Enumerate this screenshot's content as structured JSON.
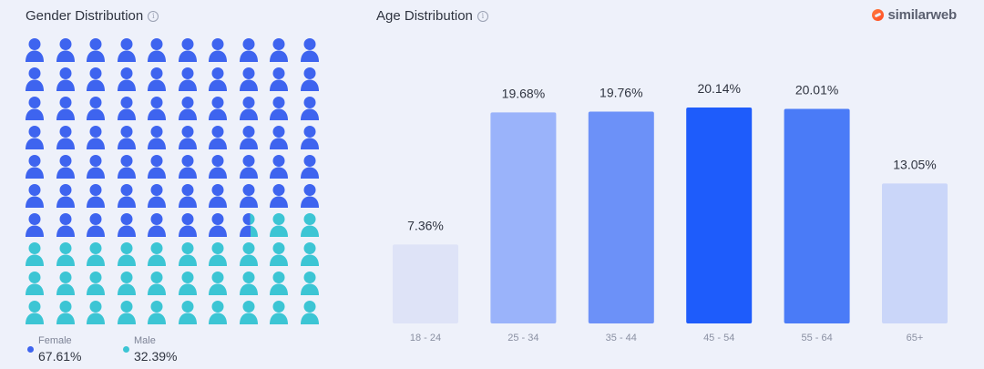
{
  "gender": {
    "title": "Gender Distribution",
    "info_icon": "info-icon",
    "icon": "person-icon",
    "female": {
      "label": "Female",
      "value": "67.61%",
      "share": 67.61,
      "color": "#3e64ef"
    },
    "male": {
      "label": "Male",
      "value": "32.39%",
      "share": 32.39,
      "color": "#3cc5d4"
    }
  },
  "age": {
    "title": "Age Distribution",
    "info_icon": "info-icon"
  },
  "brand": {
    "name": "similarweb",
    "icon": "similarweb-logo-icon"
  },
  "chart_data": {
    "type": "bar",
    "title": "Age Distribution",
    "categories": [
      "18 - 24",
      "25 - 34",
      "35 - 44",
      "45 - 54",
      "55 - 64",
      "65+"
    ],
    "values": [
      7.36,
      19.68,
      19.76,
      20.14,
      20.01,
      13.05
    ],
    "value_labels": [
      "7.36%",
      "19.68%",
      "19.76%",
      "20.14%",
      "20.01%",
      "13.05%"
    ],
    "colors": [
      "#dee3f7",
      "#9ab3fa",
      "#6c91f8",
      "#1e5cfb",
      "#4a7bf7",
      "#cad6f9"
    ],
    "ylim": [
      0,
      20.14
    ],
    "grid": false,
    "legend": "none"
  }
}
